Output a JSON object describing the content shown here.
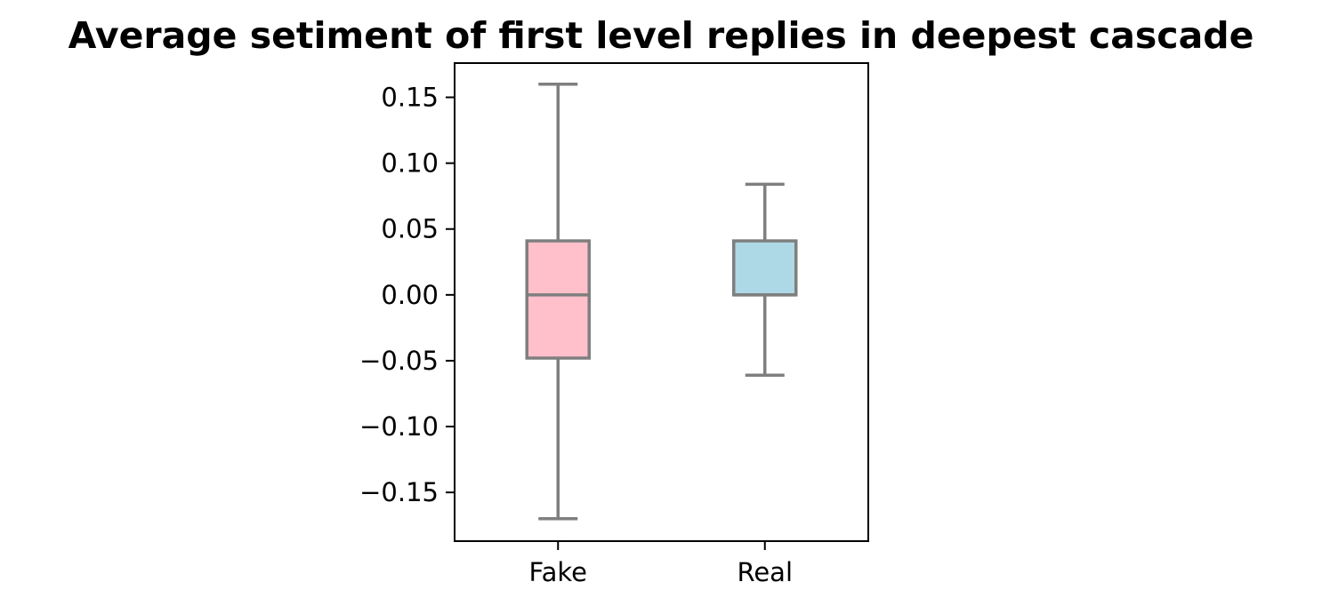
{
  "chart_data": {
    "type": "box",
    "title": "Average setiment of first level replies in deepest cascade",
    "xlabel": "",
    "ylabel": "",
    "categories": [
      "Fake",
      "Real"
    ],
    "ylim": [
      -0.187,
      0.176
    ],
    "yticks": [
      0.15,
      0.1,
      0.05,
      0.0,
      -0.05,
      -0.1,
      -0.15
    ],
    "ytick_labels": [
      "0.15",
      "0.10",
      "0.05",
      "0.00",
      "−0.05",
      "−0.10",
      "−0.15"
    ],
    "grid": false,
    "boxes": [
      {
        "name": "Fake",
        "whisker_low": -0.17,
        "q1": -0.048,
        "median": 0.0,
        "q3": 0.041,
        "whisker_high": 0.16,
        "fill": "#ffc0cb"
      },
      {
        "name": "Real",
        "whisker_low": -0.061,
        "q1": 0.0,
        "median": 0.0,
        "q3": 0.041,
        "whisker_high": 0.084,
        "fill": "#add8e6"
      }
    ],
    "line_color": "#7f7f7f"
  }
}
